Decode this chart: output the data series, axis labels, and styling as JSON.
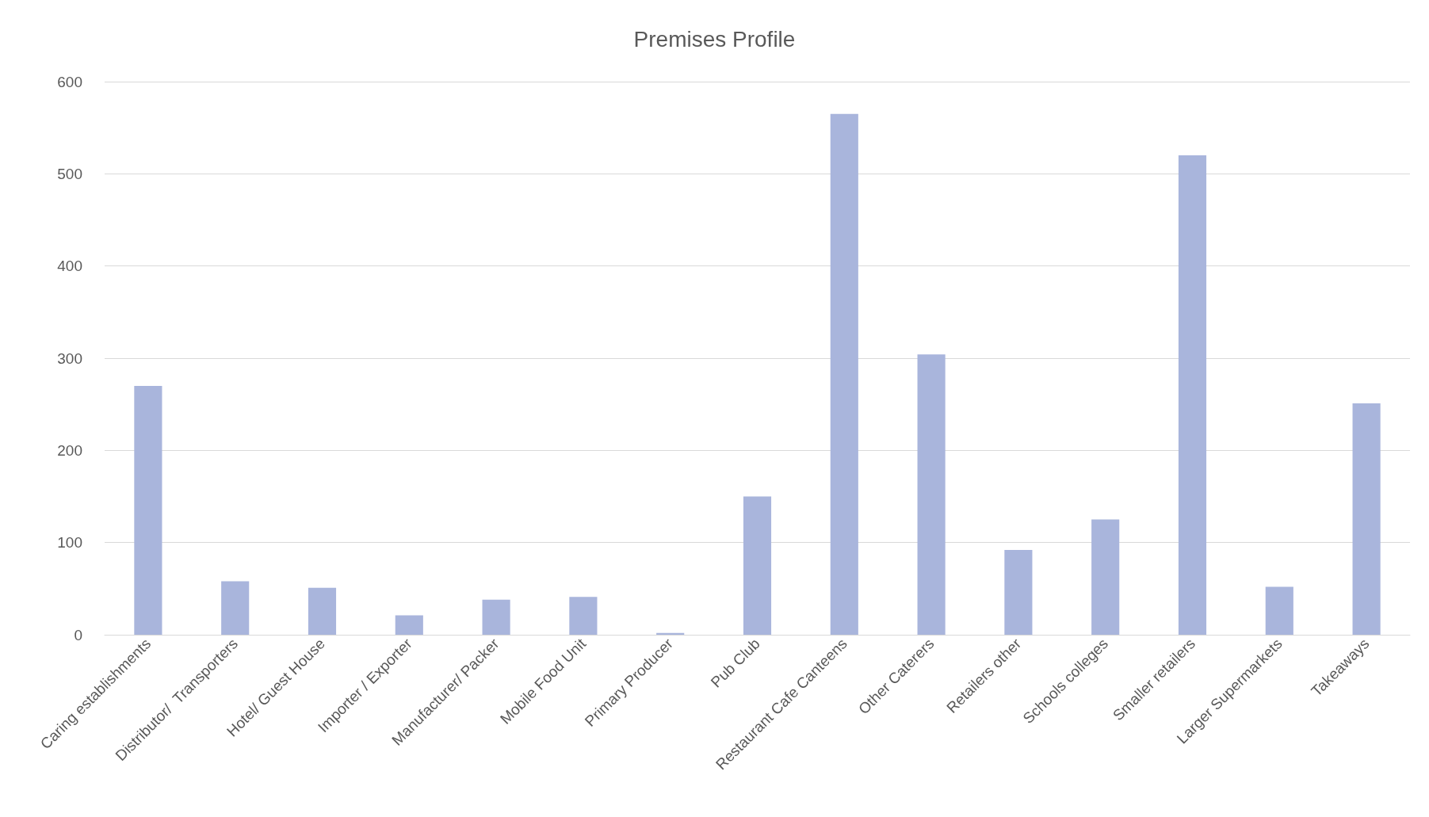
{
  "chart_data": {
    "type": "bar",
    "title": "Premises Profile",
    "categories": [
      "Caring establishments",
      "Distributor/  Transporters",
      "Hotel/ Guest House",
      "Importer / Exporter",
      "Manufacturer/ Packer",
      "Mobile Food Unit",
      "Primary Producer",
      "Pub Club",
      "Restaurant Cafe Canteens",
      "Other Caterers",
      "Retailers other",
      "Schools colleges",
      "Smaller retailers",
      "Larger Supermarkets",
      "Takeaways"
    ],
    "values": [
      270,
      58,
      51,
      21,
      38,
      41,
      2,
      150,
      565,
      304,
      92,
      125,
      520,
      52,
      251
    ],
    "color": "#a9b5dc",
    "ylim": [
      0,
      600
    ],
    "yticks": [
      0,
      100,
      200,
      300,
      400,
      500,
      600
    ],
    "grid": "y"
  }
}
